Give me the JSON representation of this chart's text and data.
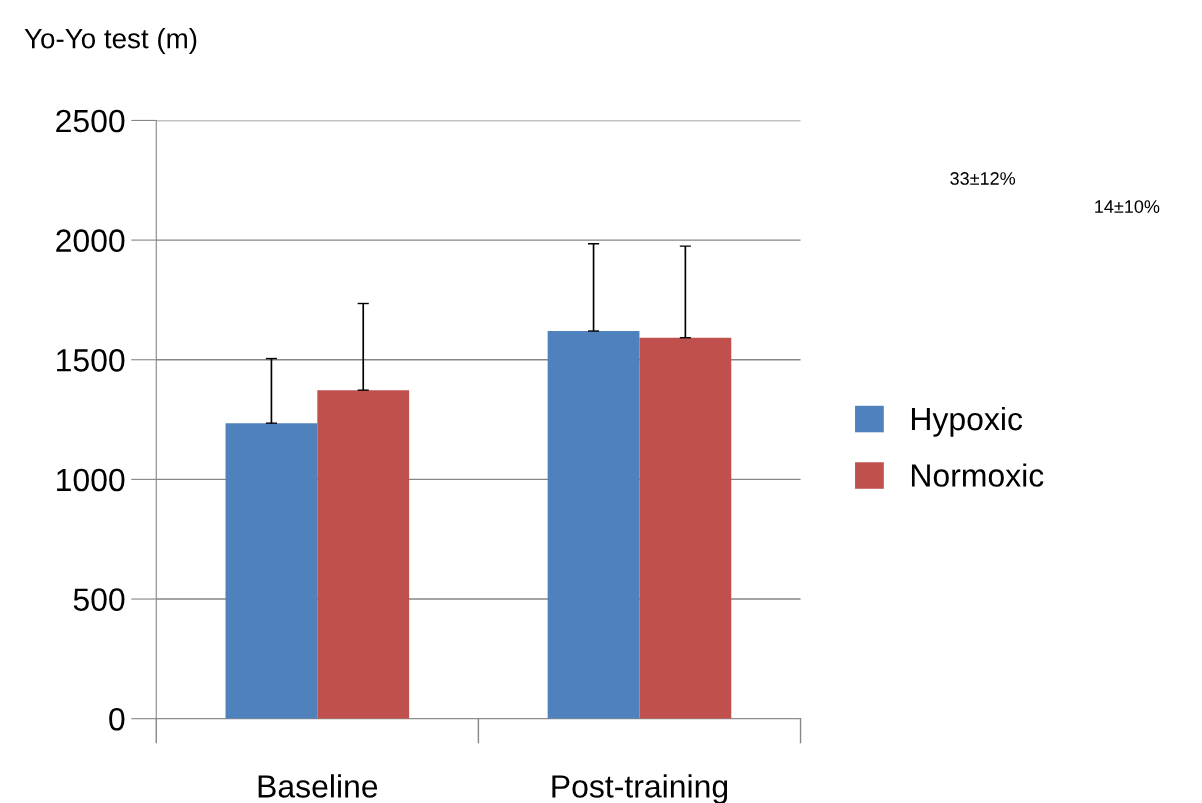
{
  "chart_data": {
    "type": "bar",
    "ylabel": "Yo-Yo test (m)",
    "categories": [
      "Baseline",
      "Post-training"
    ],
    "series": [
      {
        "name": "Hypoxic",
        "color": "#4f81bd",
        "values": [
          1235,
          1620
        ],
        "errors": [
          [
            1235,
            1505
          ],
          [
            1620,
            1985
          ]
        ]
      },
      {
        "name": "Normoxic",
        "color": "#c0504d",
        "values": [
          1373,
          1592
        ],
        "errors": [
          [
            1373,
            1735
          ],
          [
            1592,
            1975
          ]
        ]
      }
    ],
    "ylim": [
      0,
      2500
    ],
    "yticks": [
      0,
      500,
      1000,
      1500,
      2000,
      2500
    ],
    "grid": "y",
    "legend": "right",
    "annotations": [
      "33±12%",
      "14±10%"
    ]
  }
}
